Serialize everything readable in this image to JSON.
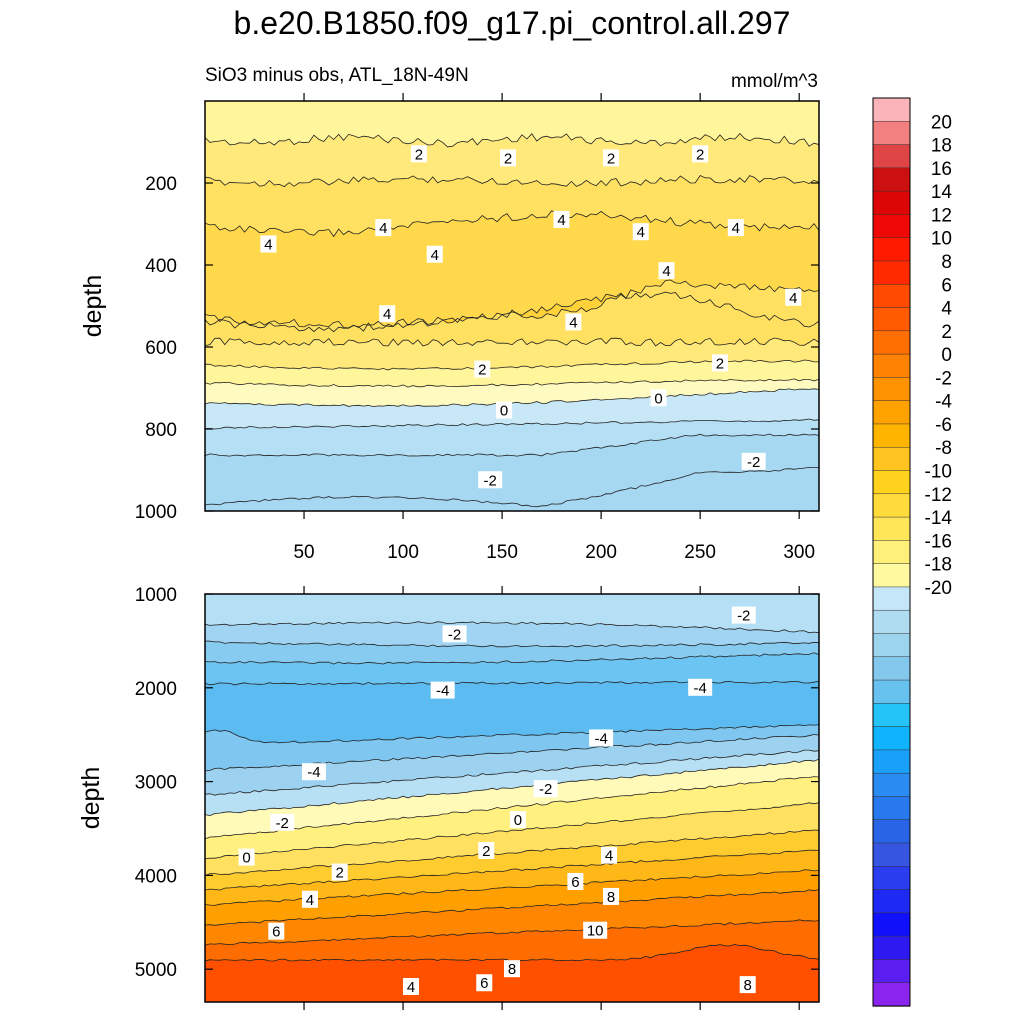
{
  "chart_data": {
    "type": "contour",
    "title": "b.e20.B1850.f09_g17.pi_control.all.297",
    "subtitle_left": "SiO3 minus obs, ATL_18N-49N",
    "subtitle_right": "mmol/m^3",
    "panels": [
      {
        "ylabel": "depth",
        "ylim": [
          1000,
          0
        ],
        "yticks": [
          "200",
          "400",
          "600",
          "800",
          "1000"
        ],
        "xticks": [
          "50",
          "100",
          "150",
          "200",
          "250",
          "300"
        ],
        "contour_labels": [
          {
            "text": "2",
            "x": 108,
            "y": 130
          },
          {
            "text": "2",
            "x": 153,
            "y": 140
          },
          {
            "text": "2",
            "x": 205,
            "y": 140
          },
          {
            "text": "2",
            "x": 250,
            "y": 130
          },
          {
            "text": "4",
            "x": 32,
            "y": 350
          },
          {
            "text": "4",
            "x": 90,
            "y": 310
          },
          {
            "text": "4",
            "x": 116,
            "y": 375
          },
          {
            "text": "4",
            "x": 180,
            "y": 290
          },
          {
            "text": "4",
            "x": 220,
            "y": 320
          },
          {
            "text": "4",
            "x": 268,
            "y": 310
          },
          {
            "text": "4",
            "x": 233,
            "y": 415
          },
          {
            "text": "4",
            "x": 297,
            "y": 480
          },
          {
            "text": "4",
            "x": 92,
            "y": 520
          },
          {
            "text": "4",
            "x": 186,
            "y": 540
          },
          {
            "text": "2",
            "x": 140,
            "y": 655
          },
          {
            "text": "2",
            "x": 260,
            "y": 640
          },
          {
            "text": "0",
            "x": 151,
            "y": 755
          },
          {
            "text": "0",
            "x": 229,
            "y": 725
          },
          {
            "text": "-2",
            "x": 144,
            "y": 925
          },
          {
            "text": "-2",
            "x": 277,
            "y": 880
          }
        ]
      },
      {
        "ylabel": "depth",
        "ylim": [
          5350,
          1000
        ],
        "yticks": [
          "1000",
          "2000",
          "3000",
          "4000",
          "5000"
        ],
        "contour_labels": [
          {
            "text": "-2",
            "x": 272,
            "y": 1230
          },
          {
            "text": "-2",
            "x": 126,
            "y": 1430
          },
          {
            "text": "-4",
            "x": 120,
            "y": 2030
          },
          {
            "text": "-4",
            "x": 250,
            "y": 2000
          },
          {
            "text": "-4",
            "x": 200,
            "y": 2540
          },
          {
            "text": "-4",
            "x": 55,
            "y": 2900
          },
          {
            "text": "-2",
            "x": 172,
            "y": 3080
          },
          {
            "text": "-2",
            "x": 39,
            "y": 3440
          },
          {
            "text": "0",
            "x": 158,
            "y": 3410
          },
          {
            "text": "0",
            "x": 21,
            "y": 3810
          },
          {
            "text": "2",
            "x": 142,
            "y": 3740
          },
          {
            "text": "2",
            "x": 68,
            "y": 3970
          },
          {
            "text": "4",
            "x": 204,
            "y": 3790
          },
          {
            "text": "4",
            "x": 53,
            "y": 4260
          },
          {
            "text": "6",
            "x": 187,
            "y": 4070
          },
          {
            "text": "6",
            "x": 36,
            "y": 4600
          },
          {
            "text": "8",
            "x": 205,
            "y": 4230
          },
          {
            "text": "10",
            "x": 197,
            "y": 4590
          },
          {
            "text": "8",
            "x": 155,
            "y": 5000
          },
          {
            "text": "6",
            "x": 141,
            "y": 5150
          },
          {
            "text": "4",
            "x": 104,
            "y": 5190
          },
          {
            "text": "8",
            "x": 274,
            "y": 5170
          }
        ]
      }
    ],
    "colorbar": {
      "levels": [
        "20",
        "18",
        "16",
        "14",
        "12",
        "10",
        "8",
        "6",
        "4",
        "2",
        "0",
        "-2",
        "-4",
        "-6",
        "-8",
        "-10",
        "-12",
        "-14",
        "-16",
        "-18",
        "-20"
      ],
      "colors_top_to_bottom": [
        "#fbb4b9",
        "#f28080",
        "#e04545",
        "#cc1010",
        "#dd0606",
        "#ee0808",
        "#ff1a00",
        "#ff2a00",
        "#ff4a00",
        "#ff5a00",
        "#ff6e00",
        "#ff8200",
        "#ff9200",
        "#ffa200",
        "#ffb400",
        "#ffc420",
        "#ffd21e",
        "#ffdc3c",
        "#ffe658",
        "#fff07a",
        "#fffaa0",
        "#c4e6f8",
        "#b0dcf2",
        "#9cd4ee",
        "#84c8ee",
        "#68c2f0",
        "#24c4f8",
        "#10b4fc",
        "#18a0fa",
        "#2a8cf2",
        "#2878ee",
        "#2a64e6",
        "#3656e2",
        "#2a3ef0",
        "#1e2af4",
        "#1010fa",
        "#2e1af0",
        "#5a1ef0",
        "#8a24ee"
      ]
    },
    "colors": {
      "upper_field": [
        "#fff59a",
        "#ffe97a",
        "#ffe060",
        "#ffd84c",
        "#ffd23a",
        "#ffe060",
        "#ffe97a",
        "#fff59a",
        "#fffac0",
        "#c8e8f8",
        "#b4dff4",
        "#a6d8f2"
      ],
      "lower_field": [
        "#b4dff4",
        "#a0d4f2",
        "#88cbf0",
        "#6cc4f2",
        "#5cbcf2",
        "#7fc6f0",
        "#9cd2f0",
        "#b8e0f4",
        "#fffab8",
        "#fff080",
        "#ffe060",
        "#ffcc30",
        "#ffb818",
        "#ffa000",
        "#ff8600",
        "#ff6c00",
        "#ff5000"
      ]
    }
  }
}
